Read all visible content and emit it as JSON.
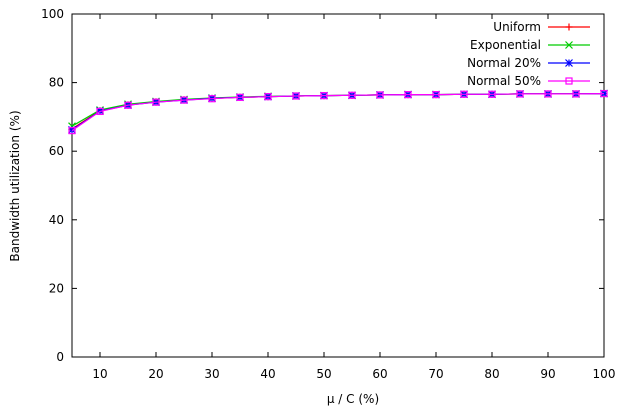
{
  "chart_data": {
    "type": "line",
    "title": "",
    "xlabel": "μ / C (%)",
    "ylabel": "Bandwidth utilization (%)",
    "xlim": [
      5,
      100
    ],
    "ylim": [
      0,
      100
    ],
    "x_ticks": [
      10,
      20,
      30,
      40,
      50,
      60,
      70,
      80,
      90,
      100
    ],
    "y_ticks": [
      0,
      20,
      40,
      60,
      80,
      100
    ],
    "grid": false,
    "legend_position": "top-right",
    "x": [
      5,
      10,
      15,
      20,
      25,
      30,
      35,
      40,
      45,
      50,
      55,
      60,
      65,
      70,
      75,
      80,
      85,
      90,
      95,
      100
    ],
    "series": [
      {
        "name": "Uniform",
        "color": "#ff0000",
        "marker": "plus",
        "values": [
          66.5,
          71.8,
          73.5,
          74.4,
          75.0,
          75.4,
          75.7,
          75.9,
          76.1,
          76.2,
          76.3,
          76.4,
          76.5,
          76.5,
          76.6,
          76.6,
          76.7,
          76.7,
          76.7,
          76.8
        ]
      },
      {
        "name": "Exponential",
        "color": "#00cc00",
        "marker": "cross",
        "values": [
          67.3,
          72.0,
          73.7,
          74.5,
          75.1,
          75.5,
          75.8,
          76.0,
          76.1,
          76.2,
          76.3,
          76.4,
          76.5,
          76.5,
          76.6,
          76.6,
          76.7,
          76.7,
          76.7,
          76.8
        ]
      },
      {
        "name": "Normal 20%",
        "color": "#0000ff",
        "marker": "asterisk",
        "values": [
          66.2,
          71.7,
          73.4,
          74.3,
          74.9,
          75.4,
          75.7,
          75.9,
          76.1,
          76.2,
          76.3,
          76.4,
          76.5,
          76.5,
          76.6,
          76.6,
          76.7,
          76.7,
          76.7,
          76.8
        ]
      },
      {
        "name": "Normal 50%",
        "color": "#ff00ff",
        "marker": "square",
        "values": [
          66.0,
          71.6,
          73.4,
          74.3,
          74.9,
          75.3,
          75.7,
          75.9,
          76.1,
          76.2,
          76.3,
          76.4,
          76.5,
          76.5,
          76.6,
          76.6,
          76.7,
          76.7,
          76.7,
          76.8
        ]
      }
    ]
  }
}
